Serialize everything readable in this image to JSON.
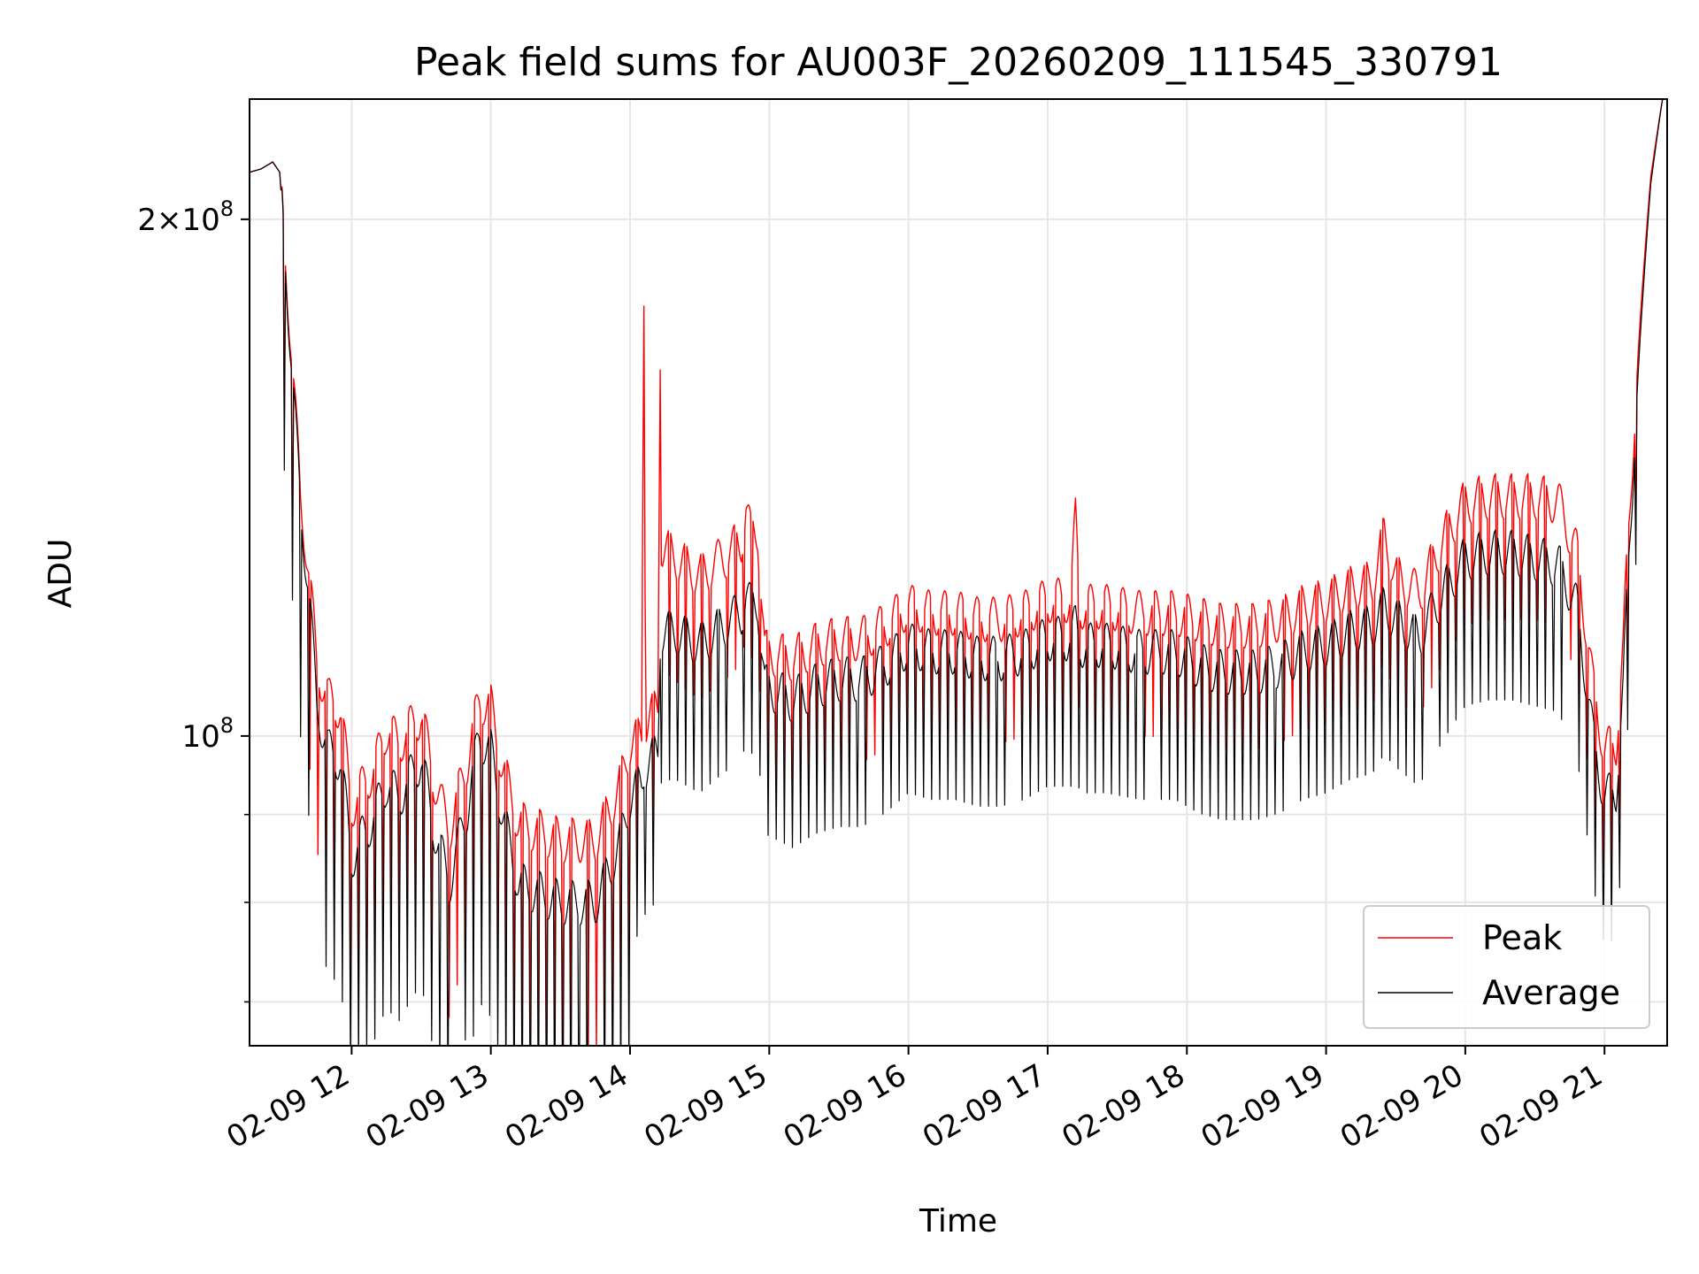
{
  "chart_data": {
    "type": "line",
    "title": "Peak field sums for AU003F_20260209_111545_330791",
    "xlabel": "Time",
    "ylabel": "ADU",
    "x_scale": "time",
    "y_scale": "log",
    "xlim": [
      "2026-02-09 11:16",
      "2026-02-09 21:27"
    ],
    "ylim": [
      66000000,
      235000000
    ],
    "x_tick_labels": [
      "02-09 12",
      "02-09 13",
      "02-09 14",
      "02-09 15",
      "02-09 16",
      "02-09 17",
      "02-09 18",
      "02-09 19",
      "02-09 20",
      "02-09 21"
    ],
    "y_major_ticks": [
      {
        "value": 100000000,
        "mantissa": "",
        "base": "10",
        "exp": "8"
      },
      {
        "value": 200000000,
        "mantissa": "2×",
        "base": "10",
        "exp": "8"
      }
    ],
    "y_minor_ticks": [
      60000000,
      70000000,
      80000000,
      90000000
    ],
    "grid": true,
    "legend": {
      "placement": "lower-right"
    },
    "series": [
      {
        "name": "Peak",
        "color": "#ff0000",
        "points": [
          [
            "2026-02-09 11:16",
            213000000
          ],
          [
            "2026-02-09 11:21",
            214000000
          ],
          [
            "2026-02-09 11:26",
            216000000
          ],
          [
            "2026-02-09 11:29",
            213000000
          ],
          [
            "2026-02-09 11:32",
            185000000
          ],
          [
            "2026-02-09 11:35",
            160000000
          ],
          [
            "2026-02-09 11:38",
            137000000
          ],
          [
            "2026-02-09 11:41",
            127000000
          ],
          [
            "2026-02-09 11:45",
            110000000
          ],
          [
            "2026-02-09 11:50",
            105000000
          ],
          [
            "2026-02-09 11:55",
            104000000
          ],
          [
            "2026-02-09 12:00",
            91000000
          ],
          [
            "2026-02-09 12:10",
            96000000
          ],
          [
            "2026-02-09 12:15",
            101000000
          ],
          [
            "2026-02-09 12:20",
            99000000
          ],
          [
            "2026-02-09 12:30",
            103000000
          ],
          [
            "2026-02-09 12:35",
            95000000
          ],
          [
            "2026-02-09 12:42",
            88000000
          ],
          [
            "2026-02-09 12:50",
            97000000
          ],
          [
            "2026-02-09 12:55",
            105000000
          ],
          [
            "2026-02-09 13:00",
            104000000
          ],
          [
            "2026-02-09 13:05",
            96000000
          ],
          [
            "2026-02-09 13:12",
            89000000
          ],
          [
            "2026-02-09 13:30",
            87000000
          ],
          [
            "2026-02-09 13:45",
            87000000
          ],
          [
            "2026-02-09 13:55",
            93000000
          ],
          [
            "2026-02-09 14:00",
            99000000
          ],
          [
            "2026-02-09 14:05",
            100000000
          ],
          [
            "2026-02-09 14:06",
            183000000
          ],
          [
            "2026-02-09 14:07",
            102000000
          ],
          [
            "2026-02-09 14:12",
            104000000
          ],
          [
            "2026-02-09 14:13",
            168000000
          ],
          [
            "2026-02-09 14:14",
            129000000
          ],
          [
            "2026-02-09 14:20",
            127000000
          ],
          [
            "2026-02-09 14:30",
            124000000
          ],
          [
            "2026-02-09 14:40",
            127000000
          ],
          [
            "2026-02-09 14:48",
            130000000
          ],
          [
            "2026-02-09 14:50",
            136000000
          ],
          [
            "2026-02-09 14:52",
            131000000
          ],
          [
            "2026-02-09 14:55",
            132000000
          ],
          [
            "2026-02-09 14:58",
            112000000
          ],
          [
            "2026-02-09 15:10",
            111000000
          ],
          [
            "2026-02-09 15:20",
            113000000
          ],
          [
            "2026-02-09 15:30",
            114000000
          ],
          [
            "2026-02-09 15:40",
            114000000
          ],
          [
            "2026-02-09 15:50",
            116000000
          ],
          [
            "2026-02-09 16:00",
            119000000
          ],
          [
            "2026-02-09 16:10",
            118000000
          ],
          [
            "2026-02-09 16:20",
            118000000
          ],
          [
            "2026-02-09 16:30",
            117000000
          ],
          [
            "2026-02-09 16:40",
            117000000
          ],
          [
            "2026-02-09 16:50",
            118000000
          ],
          [
            "2026-02-09 17:00",
            120000000
          ],
          [
            "2026-02-09 17:10",
            120000000
          ],
          [
            "2026-02-09 17:12",
            134000000
          ],
          [
            "2026-02-09 17:14",
            119000000
          ],
          [
            "2026-02-09 17:25",
            119000000
          ],
          [
            "2026-02-09 17:40",
            118000000
          ],
          [
            "2026-02-09 17:55",
            118000000
          ],
          [
            "2026-02-09 18:05",
            117000000
          ],
          [
            "2026-02-09 18:15",
            116000000
          ],
          [
            "2026-02-09 18:30",
            116000000
          ],
          [
            "2026-02-09 18:40",
            117000000
          ],
          [
            "2026-02-09 18:50",
            119000000
          ],
          [
            "2026-02-09 19:00",
            120000000
          ],
          [
            "2026-02-09 19:10",
            122000000
          ],
          [
            "2026-02-09 19:20",
            123000000
          ],
          [
            "2026-02-09 19:25",
            131000000
          ],
          [
            "2026-02-09 19:30",
            124000000
          ],
          [
            "2026-02-09 19:40",
            121000000
          ],
          [
            "2026-02-09 19:50",
            130000000
          ],
          [
            "2026-02-09 20:00",
            137000000
          ],
          [
            "2026-02-09 20:10",
            138000000
          ],
          [
            "2026-02-09 20:20",
            138000000
          ],
          [
            "2026-02-09 20:30",
            138000000
          ],
          [
            "2026-02-09 20:40",
            137000000
          ],
          [
            "2026-02-09 20:48",
            128000000
          ],
          [
            "2026-02-09 20:55",
            107000000
          ],
          [
            "2026-02-09 21:00",
            98000000
          ],
          [
            "2026-02-09 21:05",
            99000000
          ],
          [
            "2026-02-09 21:08",
            112000000
          ],
          [
            "2026-02-09 21:12",
            145000000
          ],
          [
            "2026-02-09 21:16",
            180000000
          ],
          [
            "2026-02-09 21:20",
            212000000
          ],
          [
            "2026-02-09 21:25",
            235000000
          ]
        ]
      },
      {
        "name": "Average",
        "color": "#000000",
        "points": [
          [
            "2026-02-09 11:16",
            213000000
          ],
          [
            "2026-02-09 11:21",
            214000000
          ],
          [
            "2026-02-09 11:26",
            216000000
          ],
          [
            "2026-02-09 11:29",
            213000000
          ],
          [
            "2026-02-09 11:32",
            183000000
          ],
          [
            "2026-02-09 11:35",
            158000000
          ],
          [
            "2026-02-09 11:38",
            135000000
          ],
          [
            "2026-02-09 11:41",
            124000000
          ],
          [
            "2026-02-09 11:45",
            104000000
          ],
          [
            "2026-02-09 11:50",
            98000000
          ],
          [
            "2026-02-09 11:55",
            97000000
          ],
          [
            "2026-02-09 12:00",
            85000000
          ],
          [
            "2026-02-09 12:10",
            90000000
          ],
          [
            "2026-02-09 12:15",
            94000000
          ],
          [
            "2026-02-09 12:20",
            92000000
          ],
          [
            "2026-02-09 12:30",
            97000000
          ],
          [
            "2026-02-09 12:35",
            89000000
          ],
          [
            "2026-02-09 12:42",
            82000000
          ],
          [
            "2026-02-09 12:50",
            91000000
          ],
          [
            "2026-02-09 12:55",
            100000000
          ],
          [
            "2026-02-09 13:00",
            98000000
          ],
          [
            "2026-02-09 13:05",
            90000000
          ],
          [
            "2026-02-09 13:12",
            82000000
          ],
          [
            "2026-02-09 13:30",
            80000000
          ],
          [
            "2026-02-09 13:45",
            80000000
          ],
          [
            "2026-02-09 13:55",
            86000000
          ],
          [
            "2026-02-09 14:00",
            92000000
          ],
          [
            "2026-02-09 14:05",
            94000000
          ],
          [
            "2026-02-09 14:06",
            96000000
          ],
          [
            "2026-02-09 14:07",
            96000000
          ],
          [
            "2026-02-09 14:12",
            98000000
          ],
          [
            "2026-02-09 14:13",
            114000000
          ],
          [
            "2026-02-09 14:14",
            115000000
          ],
          [
            "2026-02-09 14:20",
            115000000
          ],
          [
            "2026-02-09 14:30",
            113000000
          ],
          [
            "2026-02-09 14:40",
            116000000
          ],
          [
            "2026-02-09 14:48",
            118000000
          ],
          [
            "2026-02-09 14:50",
            121000000
          ],
          [
            "2026-02-09 14:52",
            119000000
          ],
          [
            "2026-02-09 14:55",
            120000000
          ],
          [
            "2026-02-09 14:58",
            107000000
          ],
          [
            "2026-02-09 15:10",
            105000000
          ],
          [
            "2026-02-09 15:20",
            107000000
          ],
          [
            "2026-02-09 15:30",
            108000000
          ],
          [
            "2026-02-09 15:40",
            108000000
          ],
          [
            "2026-02-09 15:50",
            110000000
          ],
          [
            "2026-02-09 16:00",
            113000000
          ],
          [
            "2026-02-09 16:10",
            112000000
          ],
          [
            "2026-02-09 16:20",
            112000000
          ],
          [
            "2026-02-09 16:30",
            111000000
          ],
          [
            "2026-02-09 16:40",
            111000000
          ],
          [
            "2026-02-09 16:50",
            112000000
          ],
          [
            "2026-02-09 17:00",
            114000000
          ],
          [
            "2026-02-09 17:10",
            114000000
          ],
          [
            "2026-02-09 17:12",
            116000000
          ],
          [
            "2026-02-09 17:14",
            113000000
          ],
          [
            "2026-02-09 17:25",
            113000000
          ],
          [
            "2026-02-09 17:40",
            112000000
          ],
          [
            "2026-02-09 17:55",
            112000000
          ],
          [
            "2026-02-09 18:05",
            110000000
          ],
          [
            "2026-02-09 18:15",
            109000000
          ],
          [
            "2026-02-09 18:30",
            109000000
          ],
          [
            "2026-02-09 18:40",
            110000000
          ],
          [
            "2026-02-09 18:50",
            112000000
          ],
          [
            "2026-02-09 19:00",
            113000000
          ],
          [
            "2026-02-09 19:10",
            115000000
          ],
          [
            "2026-02-09 19:20",
            116000000
          ],
          [
            "2026-02-09 19:25",
            119000000
          ],
          [
            "2026-02-09 19:30",
            117000000
          ],
          [
            "2026-02-09 19:40",
            114000000
          ],
          [
            "2026-02-09 19:50",
            121000000
          ],
          [
            "2026-02-09 20:00",
            127000000
          ],
          [
            "2026-02-09 20:10",
            128000000
          ],
          [
            "2026-02-09 20:20",
            128000000
          ],
          [
            "2026-02-09 20:30",
            127000000
          ],
          [
            "2026-02-09 20:40",
            126000000
          ],
          [
            "2026-02-09 20:48",
            119000000
          ],
          [
            "2026-02-09 20:55",
            100000000
          ],
          [
            "2026-02-09 21:00",
            92000000
          ],
          [
            "2026-02-09 21:05",
            93000000
          ],
          [
            "2026-02-09 21:08",
            106000000
          ],
          [
            "2026-02-09 21:12",
            140000000
          ],
          [
            "2026-02-09 21:16",
            176000000
          ],
          [
            "2026-02-09 21:20",
            210000000
          ],
          [
            "2026-02-09 21:25",
            235000000
          ]
        ]
      }
    ]
  }
}
